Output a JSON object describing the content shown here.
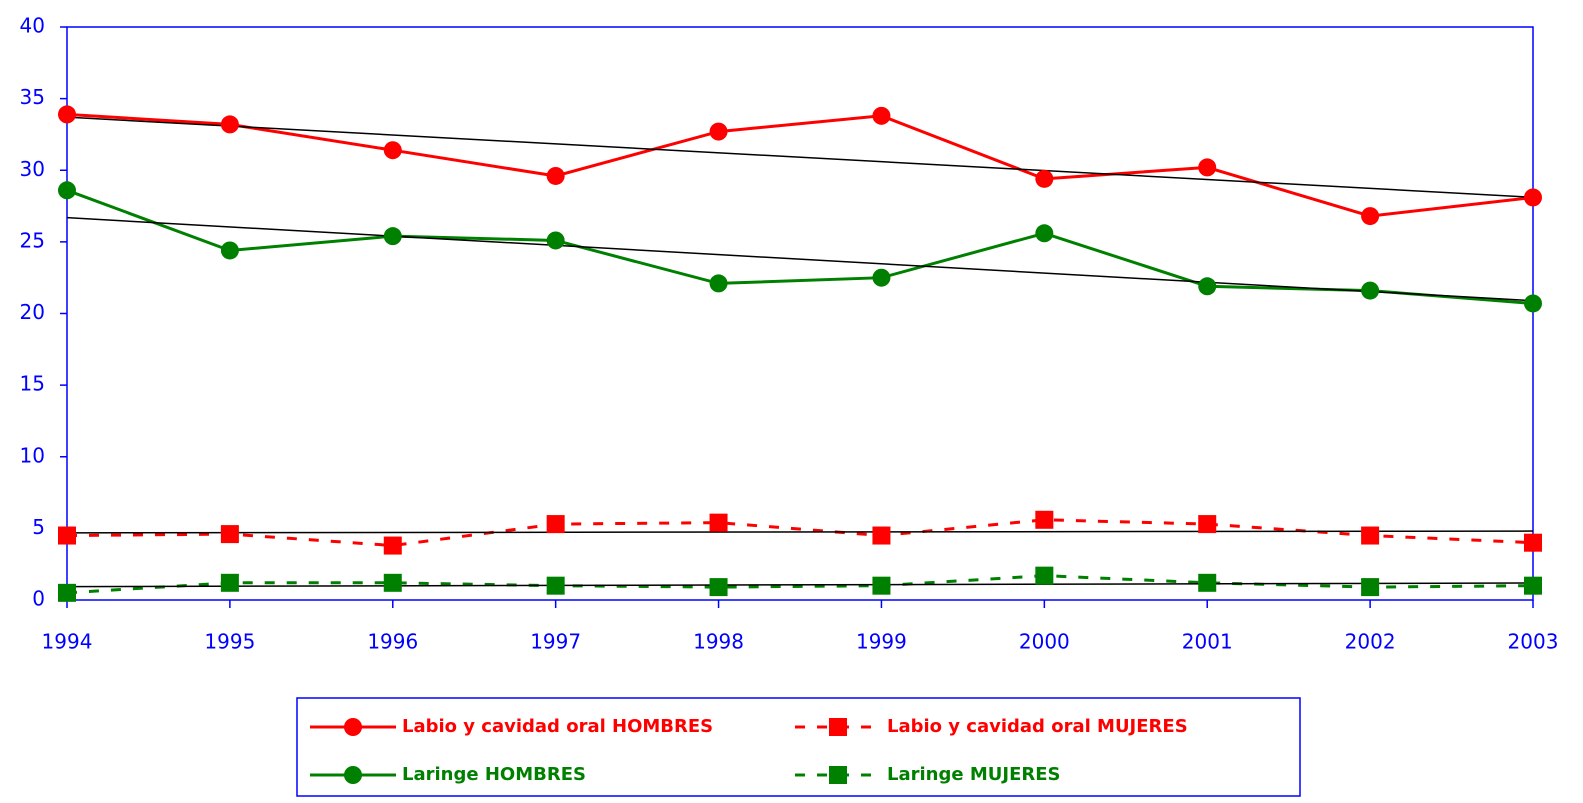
{
  "chart_data": {
    "type": "line",
    "x": [
      1994,
      1995,
      1996,
      1997,
      1998,
      1999,
      2000,
      2001,
      2002,
      2003
    ],
    "xlim": [
      1994,
      2003
    ],
    "xticks": [
      1994,
      1995,
      1996,
      1997,
      1998,
      1999,
      2000,
      2001,
      2002,
      2003
    ],
    "ylim": [
      0,
      40
    ],
    "yticks": [
      0,
      5,
      10,
      15,
      20,
      25,
      30,
      35,
      40
    ],
    "trendline": true,
    "legend": "bottom",
    "series": [
      {
        "name": "Labio y cavidad oral HOMBRES",
        "color": "#ff0000",
        "marker": "circle",
        "dashed": false,
        "values": [
          33.9,
          33.2,
          31.4,
          29.6,
          32.7,
          33.8,
          29.4,
          30.2,
          26.8,
          28.1
        ]
      },
      {
        "name": "Labio y cavidad oral MUJERES",
        "color": "#ff0000",
        "marker": "square",
        "dashed": true,
        "values": [
          4.5,
          4.6,
          3.8,
          5.3,
          5.4,
          4.5,
          5.6,
          5.3,
          4.5,
          4.0
        ]
      },
      {
        "name": "Laringe HOMBRES",
        "color": "#008000",
        "marker": "circle",
        "dashed": false,
        "values": [
          28.6,
          24.4,
          25.4,
          25.1,
          22.1,
          22.5,
          25.6,
          21.9,
          21.6,
          20.7
        ]
      },
      {
        "name": "Laringe MUJERES",
        "color": "#008000",
        "marker": "square",
        "dashed": true,
        "values": [
          0.5,
          1.2,
          1.2,
          1.0,
          0.9,
          1.0,
          1.7,
          1.2,
          0.9,
          1.0
        ]
      }
    ]
  }
}
